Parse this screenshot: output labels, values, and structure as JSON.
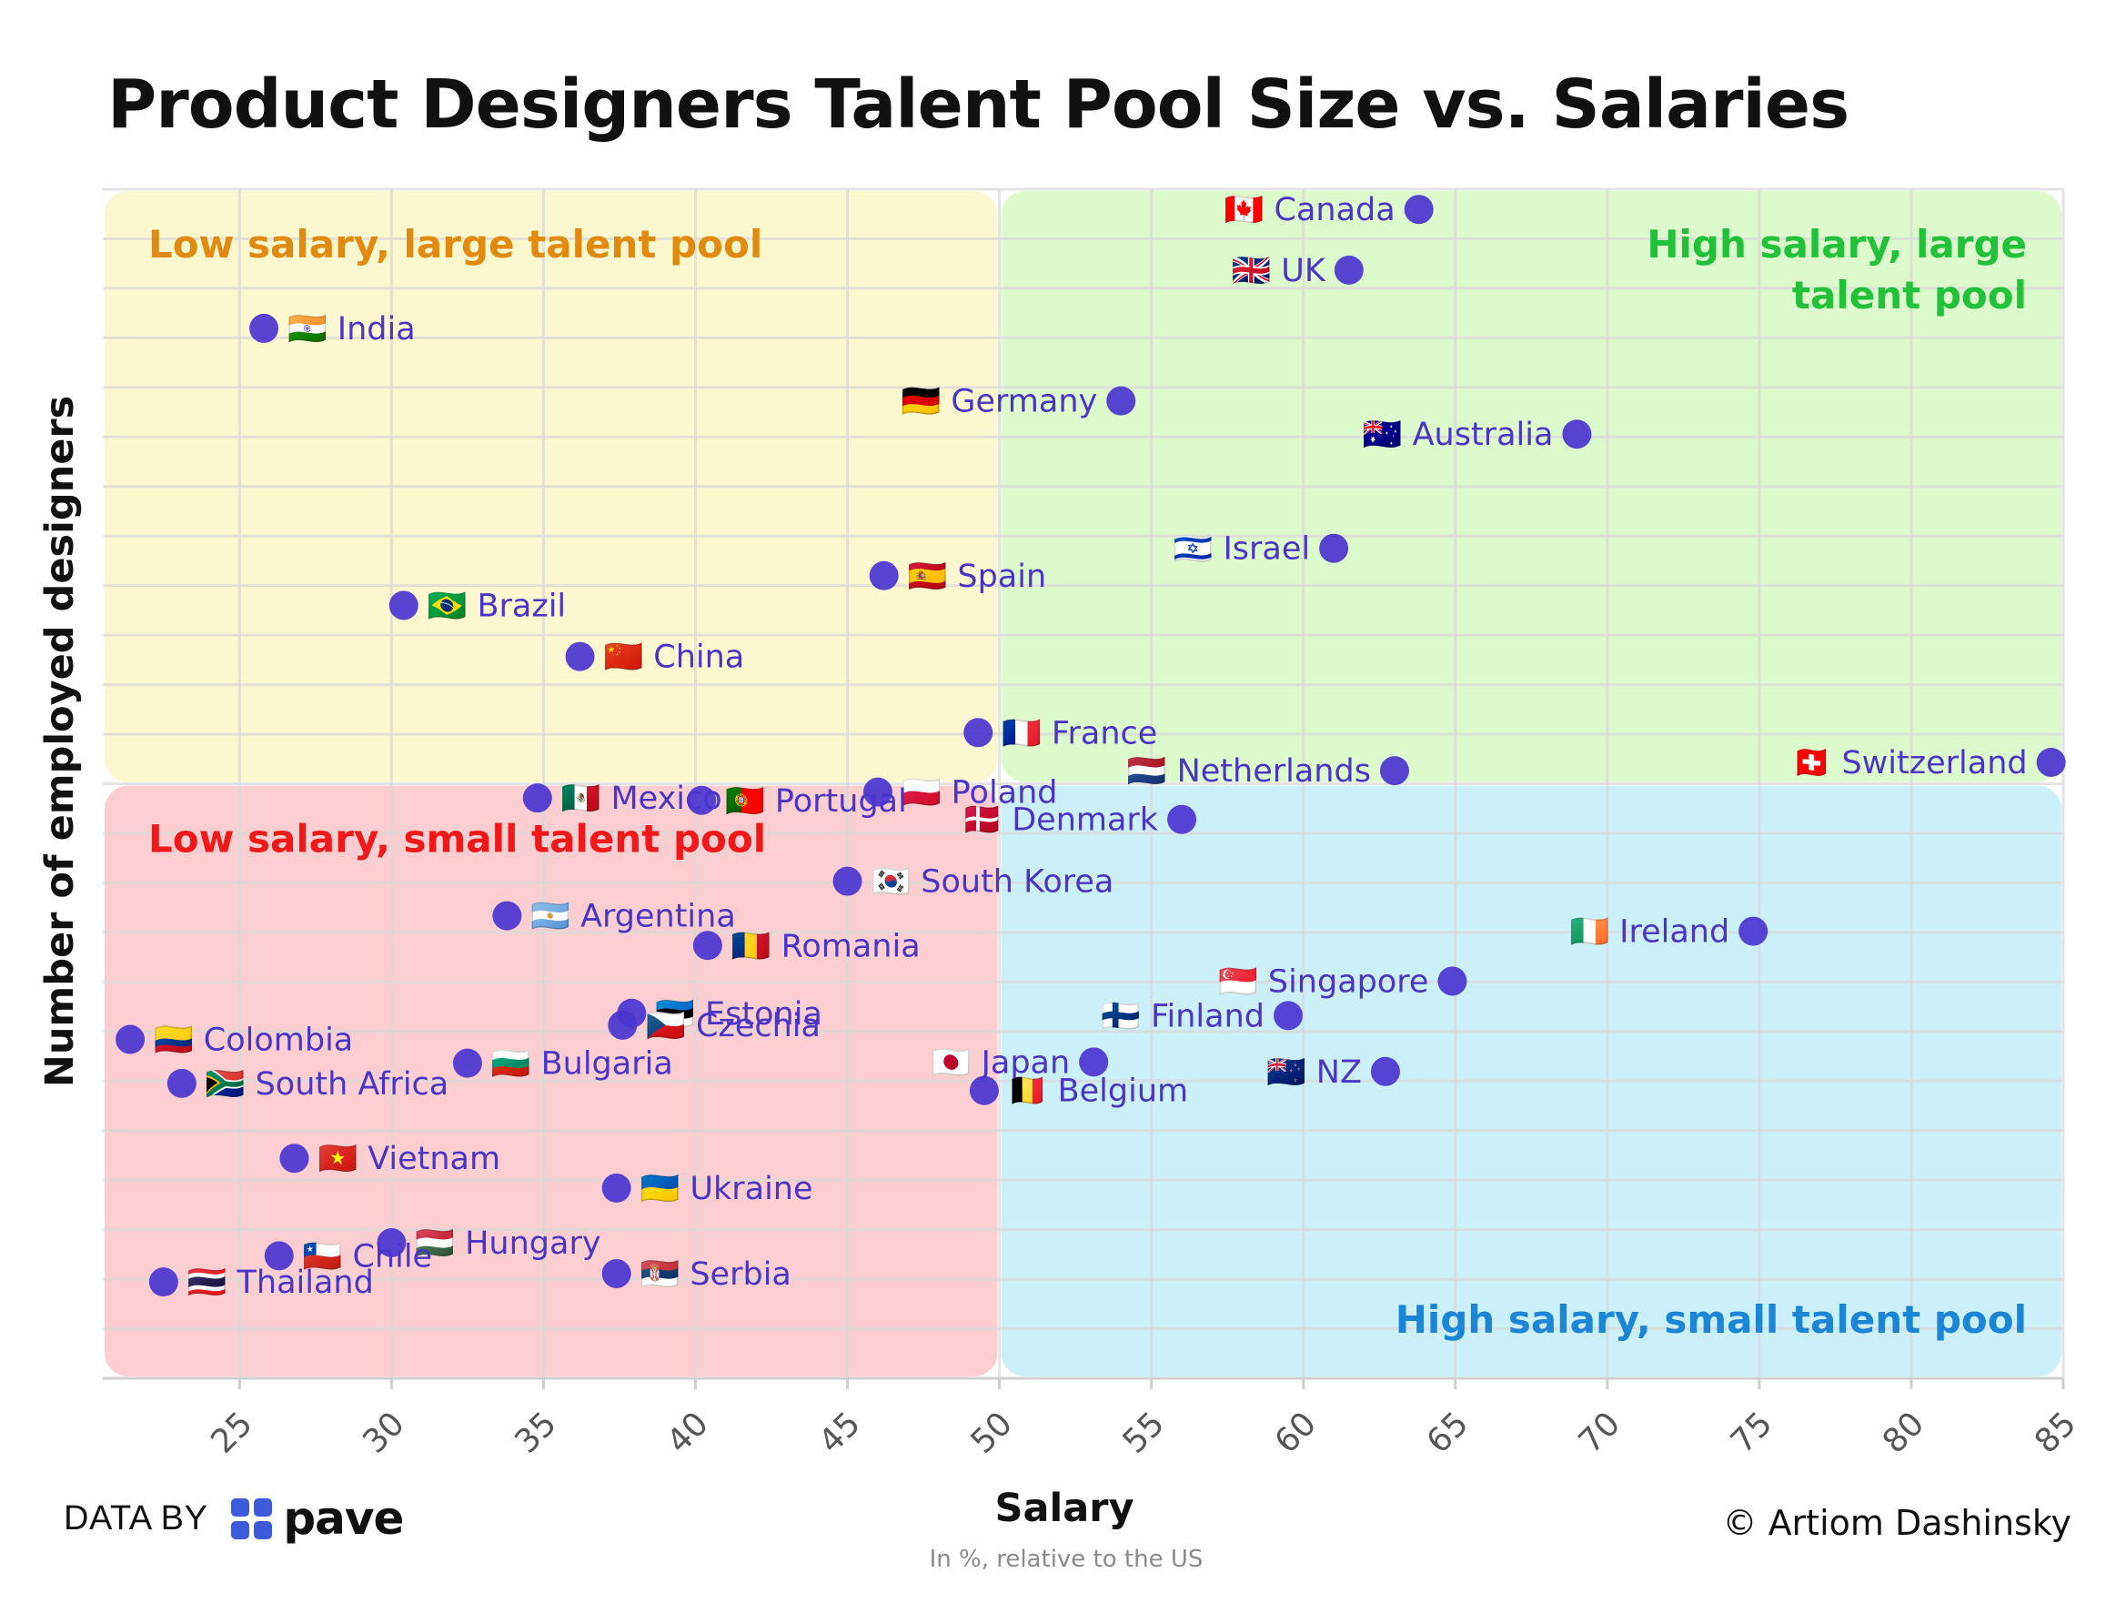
{
  "chart_data": {
    "type": "scatter",
    "title": "Product Designers Talent Pool Size vs. Salaries",
    "xlabel": "Salary",
    "xlabel_sub": "In %, relative to the US",
    "ylabel": "Number of employed designers",
    "xlim": [
      20.5,
      85
    ],
    "ylim": [
      0,
      100
    ],
    "xticks": [
      25,
      30,
      35,
      40,
      45,
      50,
      55,
      60,
      65,
      70,
      75,
      80,
      85
    ],
    "grid": true,
    "point_color": "#4a34d0",
    "label_color": "#4a35c4",
    "quadrants": [
      {
        "label": "Low salary, large talent pool",
        "color": "#fbf7cf",
        "text_color": "#e08a10",
        "x": [
          20.5,
          50
        ],
        "y": [
          50,
          100
        ],
        "position": "top-left"
      },
      {
        "label": "High salary, large talent pool",
        "color": "#dcfacb",
        "text_color": "#22c13a",
        "x": [
          50,
          85
        ],
        "y": [
          50,
          100
        ],
        "position": "top-right"
      },
      {
        "label": "Low salary, small talent pool",
        "color": "#fbcfd2",
        "text_color": "#f01818",
        "x": [
          20.5,
          50
        ],
        "y": [
          0,
          50
        ],
        "position": "top-left"
      },
      {
        "label": "High salary, small talent pool",
        "color": "#ccf0f9",
        "text_color": "#1b85d6",
        "x": [
          50,
          85
        ],
        "y": [
          0,
          50
        ],
        "position": "bottom-right"
      }
    ],
    "points": [
      {
        "country": "Canada",
        "flag": "🇨🇦",
        "x": 63.8,
        "y": 98.3,
        "side": "left"
      },
      {
        "country": "UK",
        "flag": "🇬🇧",
        "x": 61.5,
        "y": 93.2,
        "side": "left"
      },
      {
        "country": "India",
        "flag": "🇮🇳",
        "x": 25.8,
        "y": 88.3,
        "side": "right"
      },
      {
        "country": "Germany",
        "flag": "🇩🇪",
        "x": 54.0,
        "y": 82.2,
        "side": "left"
      },
      {
        "country": "Australia",
        "flag": "🇦🇺",
        "x": 69.0,
        "y": 79.4,
        "side": "left"
      },
      {
        "country": "Israel",
        "flag": "🇮🇱",
        "x": 61.0,
        "y": 69.8,
        "side": "left"
      },
      {
        "country": "Spain",
        "flag": "🇪🇸",
        "x": 46.2,
        "y": 67.5,
        "side": "right"
      },
      {
        "country": "Brazil",
        "flag": "🇧🇷",
        "x": 30.4,
        "y": 65.0,
        "side": "right"
      },
      {
        "country": "China",
        "flag": "🇨🇳",
        "x": 36.2,
        "y": 60.7,
        "side": "right"
      },
      {
        "country": "France",
        "flag": "🇫🇷",
        "x": 49.3,
        "y": 54.3,
        "side": "right"
      },
      {
        "country": "Switzerland",
        "flag": "🇨🇭",
        "x": 84.6,
        "y": 51.8,
        "side": "left"
      },
      {
        "country": "Netherlands",
        "flag": "🇳🇱",
        "x": 63.0,
        "y": 51.1,
        "side": "left"
      },
      {
        "country": "Poland",
        "flag": "🇵🇱",
        "x": 46.0,
        "y": 49.3,
        "side": "right"
      },
      {
        "country": "Mexico",
        "flag": "🇲🇽",
        "x": 34.8,
        "y": 48.8,
        "side": "right"
      },
      {
        "country": "Portugal",
        "flag": "🇵🇹",
        "x": 40.2,
        "y": 48.6,
        "side": "right"
      },
      {
        "country": "Denmark",
        "flag": "🇩🇰",
        "x": 56.0,
        "y": 47.0,
        "side": "left"
      },
      {
        "country": "South Korea",
        "flag": "🇰🇷",
        "x": 45.0,
        "y": 41.8,
        "side": "right"
      },
      {
        "country": "Argentina",
        "flag": "🇦🇷",
        "x": 33.8,
        "y": 38.9,
        "side": "right"
      },
      {
        "country": "Ireland",
        "flag": "🇮🇪",
        "x": 74.8,
        "y": 37.6,
        "side": "left"
      },
      {
        "country": "Romania",
        "flag": "🇷🇴",
        "x": 40.4,
        "y": 36.4,
        "side": "right"
      },
      {
        "country": "Singapore",
        "flag": "🇸🇬",
        "x": 64.9,
        "y": 33.4,
        "side": "left"
      },
      {
        "country": "Finland",
        "flag": "🇫🇮",
        "x": 59.5,
        "y": 30.5,
        "side": "left"
      },
      {
        "country": "Estonia",
        "flag": "🇪🇪",
        "x": 37.9,
        "y": 30.7,
        "side": "right"
      },
      {
        "country": "Czechia",
        "flag": "🇨🇿",
        "x": 37.6,
        "y": 29.7,
        "side": "right"
      },
      {
        "country": "Colombia",
        "flag": "🇨🇴",
        "x": 21.4,
        "y": 28.5,
        "side": "right"
      },
      {
        "country": "Bulgaria",
        "flag": "🇧🇬",
        "x": 32.5,
        "y": 26.5,
        "side": "right"
      },
      {
        "country": "Japan",
        "flag": "🇯🇵",
        "x": 53.1,
        "y": 26.6,
        "side": "left"
      },
      {
        "country": "NZ",
        "flag": "🇳🇿",
        "x": 62.7,
        "y": 25.8,
        "side": "left"
      },
      {
        "country": "South Africa",
        "flag": "🇿🇦",
        "x": 23.1,
        "y": 24.8,
        "side": "right"
      },
      {
        "country": "Belgium",
        "flag": "🇧🇪",
        "x": 49.5,
        "y": 24.2,
        "side": "right"
      },
      {
        "country": "Vietnam",
        "flag": "🇻🇳",
        "x": 26.8,
        "y": 18.5,
        "side": "right"
      },
      {
        "country": "Ukraine",
        "flag": "🇺🇦",
        "x": 37.4,
        "y": 16.0,
        "side": "right"
      },
      {
        "country": "Hungary",
        "flag": "🇭🇺",
        "x": 30.0,
        "y": 11.4,
        "side": "right"
      },
      {
        "country": "Chile",
        "flag": "🇨🇱",
        "x": 26.3,
        "y": 10.3,
        "side": "right"
      },
      {
        "country": "Serbia",
        "flag": "🇷🇸",
        "x": 37.4,
        "y": 8.8,
        "side": "right"
      },
      {
        "country": "Thailand",
        "flag": "🇹🇭",
        "x": 22.5,
        "y": 8.1,
        "side": "right"
      }
    ]
  },
  "footer": {
    "data_by": "DATA BY",
    "brand": "pave",
    "brand_color": "#3b5bdb",
    "credit": "© Artiom Dashinsky"
  }
}
